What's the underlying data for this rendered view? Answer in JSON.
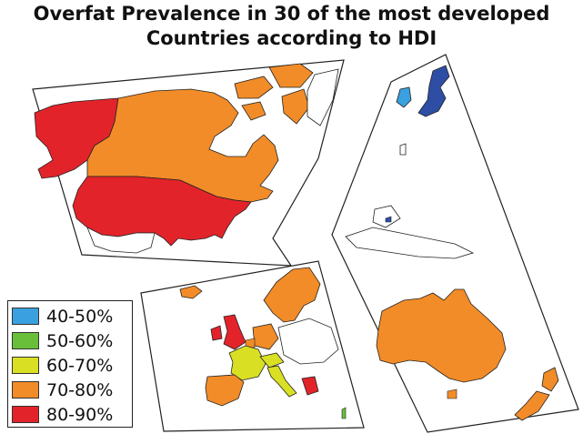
{
  "title": {
    "line1": "Overfat Prevalence in 30 of the most developed",
    "line2": "Countries according to HDI"
  },
  "colors": {
    "blue": "#3aa0df",
    "green": "#6abf3a",
    "yellow": "#d9e024",
    "orange": "#f28c28",
    "red": "#e3232a",
    "dark_blue": "#2e4ea5",
    "land_outline": "#222222"
  },
  "legend": {
    "items": [
      {
        "label": "40-50%",
        "color": "#3aa0df"
      },
      {
        "label": "50-60%",
        "color": "#6abf3a"
      },
      {
        "label": "60-70%",
        "color": "#d9e024"
      },
      {
        "label": "70-80%",
        "color": "#f28c28"
      },
      {
        "label": "80-90%",
        "color": "#e3232a"
      }
    ]
  }
}
